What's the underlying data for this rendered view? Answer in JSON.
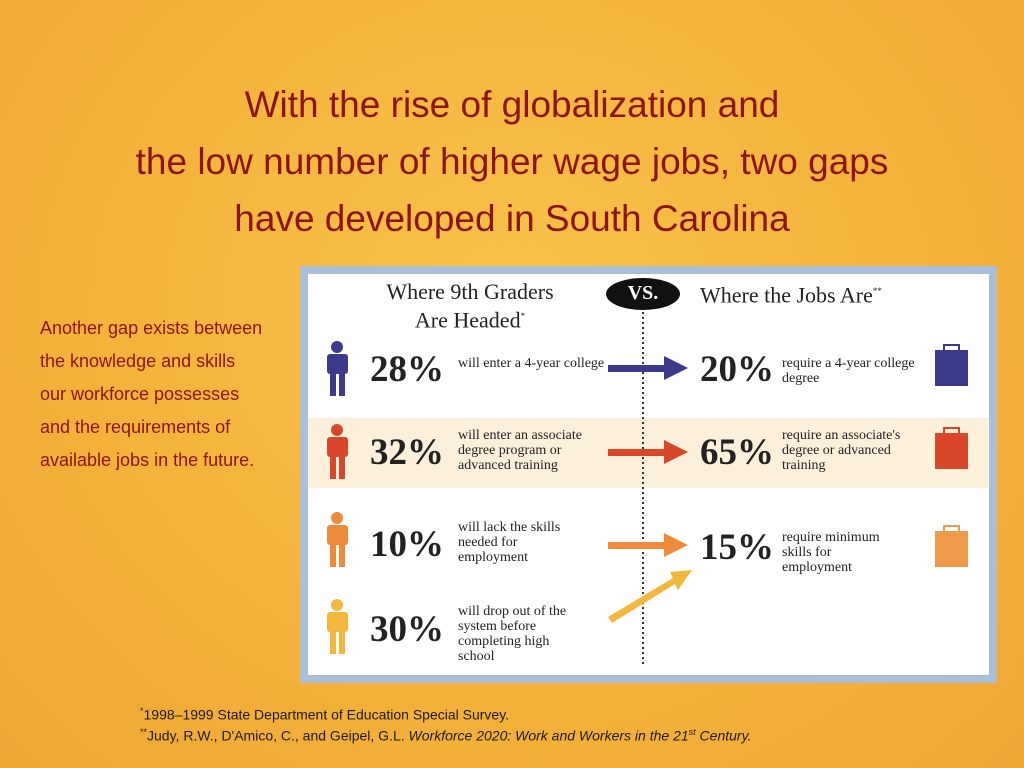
{
  "header": {
    "title": [
      "With the rise of globalization and",
      "the low number of higher wage jobs, two gaps",
      "have developed in South Carolina"
    ]
  },
  "body": {
    "text": "Another gap exists between the knowledge and skills our workforce possesses and the requirements of available jobs in the future."
  },
  "infographic": {
    "left_header": [
      "Where 9th Graders",
      "Are Headed"
    ],
    "left_marker": "*",
    "vs": "VS.",
    "right_header": "Where the Jobs Are",
    "right_marker": "**",
    "rows": [
      {
        "left_percent": "28%",
        "left_text": "will enter a 4-year college",
        "right_percent": "20%",
        "right_text": "require a 4-year college degree"
      },
      {
        "left_percent": "32%",
        "left_text": "will enter an associate degree program or advanced training",
        "right_percent": "65%",
        "right_text": "require an associate's degree or advanced training"
      },
      {
        "left_percent": "10%",
        "left_text": "will lack the skills needed for employment",
        "right_percent": "15%",
        "right_text": "require minimum skills for employment"
      },
      {
        "left_percent": "30%",
        "left_text": "will drop out of the system before completing high school"
      }
    ]
  },
  "footnotes": [
    {
      "marker": "*",
      "text": "1998–1999 State Department of Education Special Survey."
    },
    {
      "marker": "**",
      "text": "Judy, R.W., D'Amico, C., and Geipel, G.L. ",
      "italic": "Workforce 2020: Work and Workers in the 21",
      "sup": "st",
      "italic_end": " Century."
    }
  ]
}
